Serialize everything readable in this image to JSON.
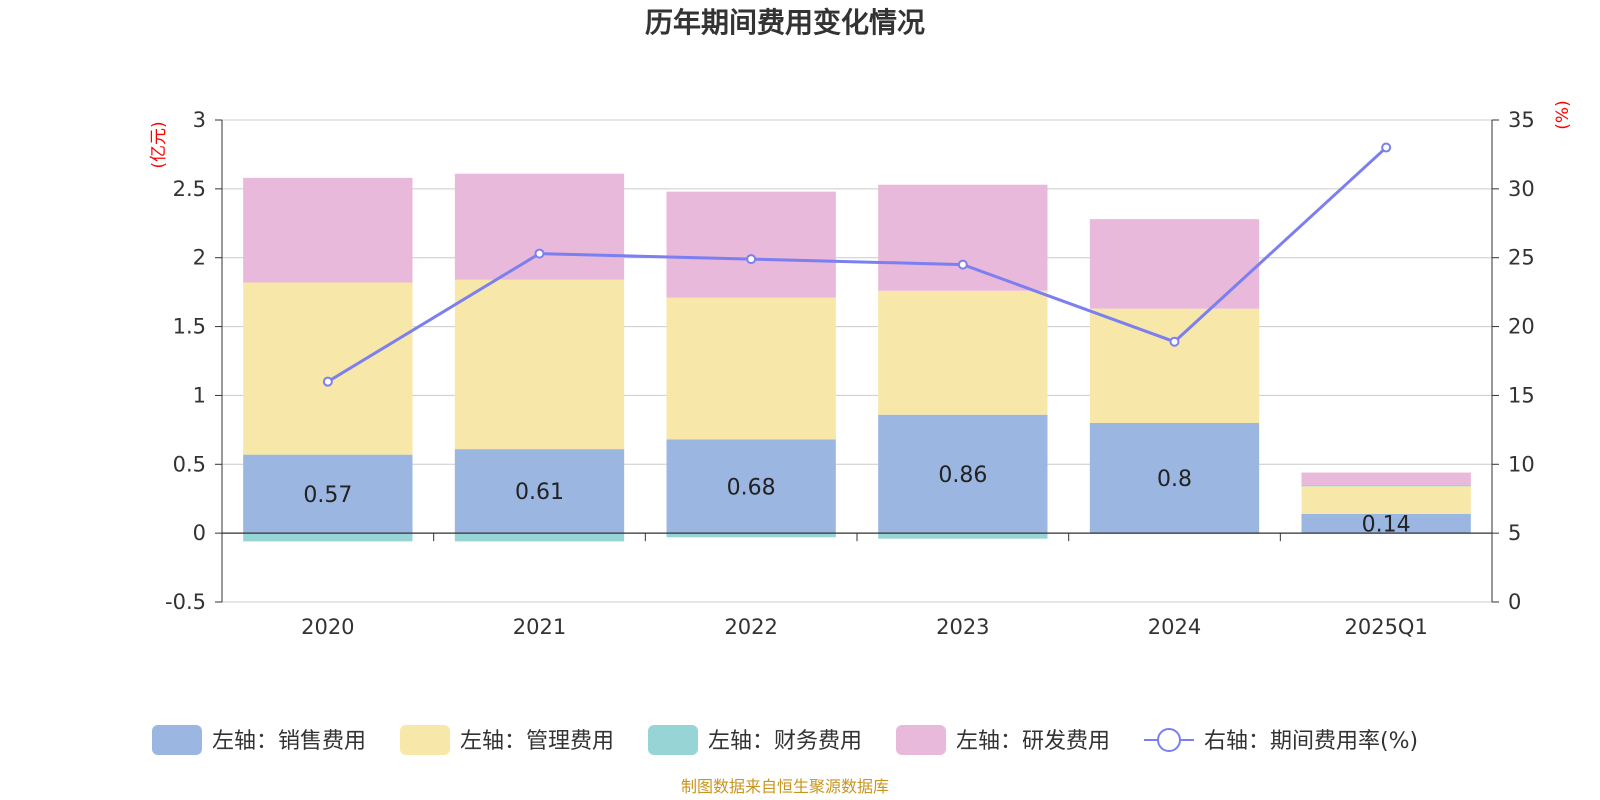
{
  "chart_data": {
    "type": "bar",
    "title": "历年期间费用变化情况",
    "categories": [
      "2020",
      "2021",
      "2022",
      "2023",
      "2024",
      "2025Q1"
    ],
    "left_axis": {
      "unit": "(亿元)",
      "ylim": [
        -0.5,
        3
      ],
      "ticks": [
        "3",
        "2.5",
        "2",
        "1.5",
        "1",
        "0.5",
        "0",
        "-0.5"
      ]
    },
    "right_axis": {
      "unit": "(%)",
      "ylim": [
        0,
        35
      ],
      "ticks": [
        "35",
        "30",
        "25",
        "20",
        "15",
        "10",
        "5",
        "0"
      ]
    },
    "grid": true,
    "legend_position": "bottom",
    "series": [
      {
        "name": "左轴：销售费用",
        "type": "bar",
        "color": "#9bb7e1",
        "values": [
          0.57,
          0.61,
          0.68,
          0.86,
          0.8,
          0.14
        ],
        "labels": [
          "0.57",
          "0.61",
          "0.68",
          "0.86",
          "0.8",
          "0.14"
        ]
      },
      {
        "name": "左轴：管理费用",
        "type": "bar",
        "color": "#f7e7a8",
        "values": [
          1.25,
          1.23,
          1.03,
          0.9,
          0.83,
          0.2
        ]
      },
      {
        "name": "左轴：财务费用",
        "type": "bar",
        "color": "#97d4d6",
        "values": [
          -0.06,
          -0.06,
          -0.03,
          -0.04,
          -0.005,
          0.01
        ]
      },
      {
        "name": "左轴：研发费用",
        "type": "bar",
        "color": "#e8b9da",
        "values": [
          0.76,
          0.77,
          0.77,
          0.77,
          0.65,
          0.09
        ]
      },
      {
        "name": "右轴：期间费用率(%)",
        "type": "line",
        "color": "#7b7ff0",
        "values": [
          16.0,
          25.3,
          24.9,
          24.5,
          18.9,
          33.0
        ]
      }
    ]
  },
  "footer": {
    "source": "制图数据来自恒生聚源数据库"
  }
}
